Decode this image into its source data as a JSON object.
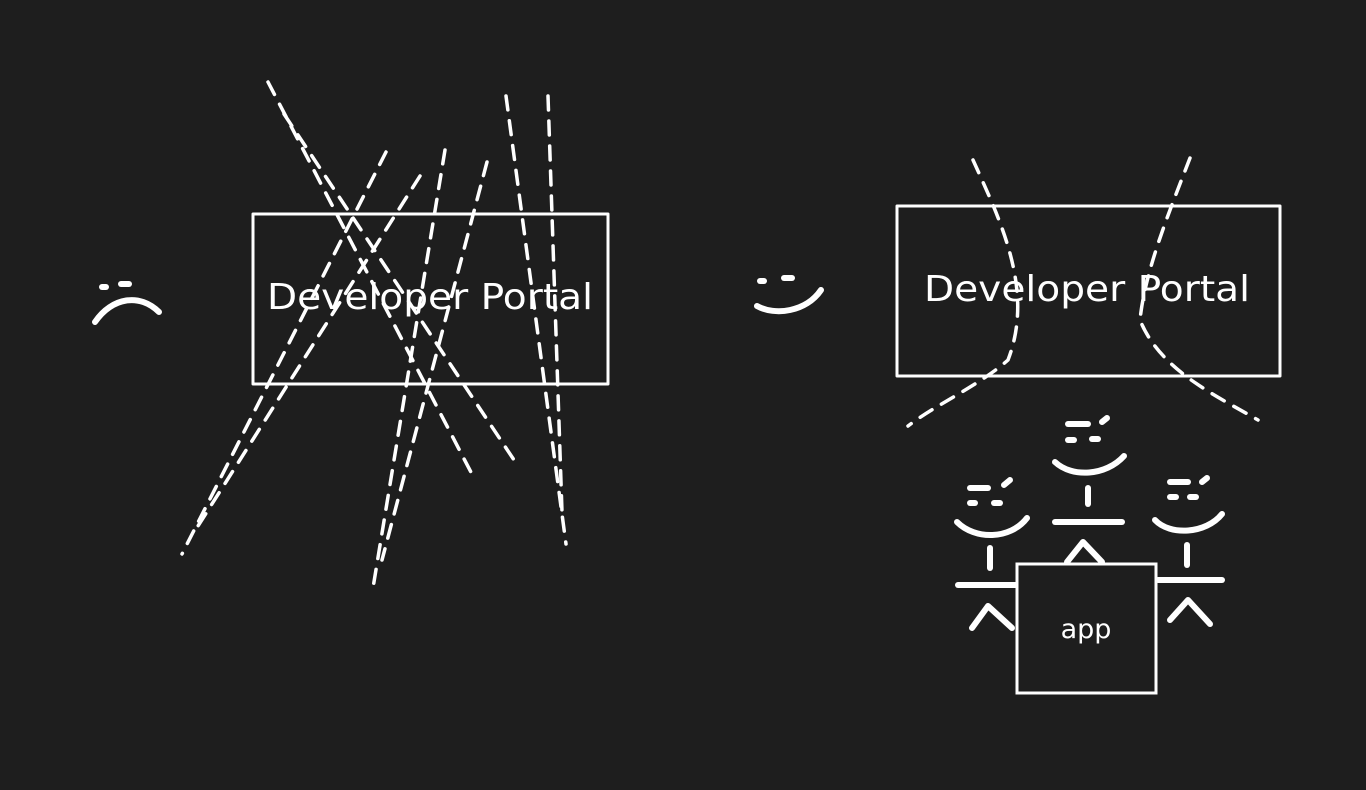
{
  "colors": {
    "background": "#1e1e1e",
    "ink": "#ffffff"
  },
  "left_panel": {
    "portal_label": "Developer Portal",
    "sentiment_icon": "frown-face-icon"
  },
  "right_panel": {
    "portal_label": "Developer Portal",
    "sentiment_icon": "smile-face-icon",
    "app_label": "app",
    "people_icons": [
      "smile-person-icon",
      "smile-person-icon",
      "smile-person-icon"
    ]
  }
}
